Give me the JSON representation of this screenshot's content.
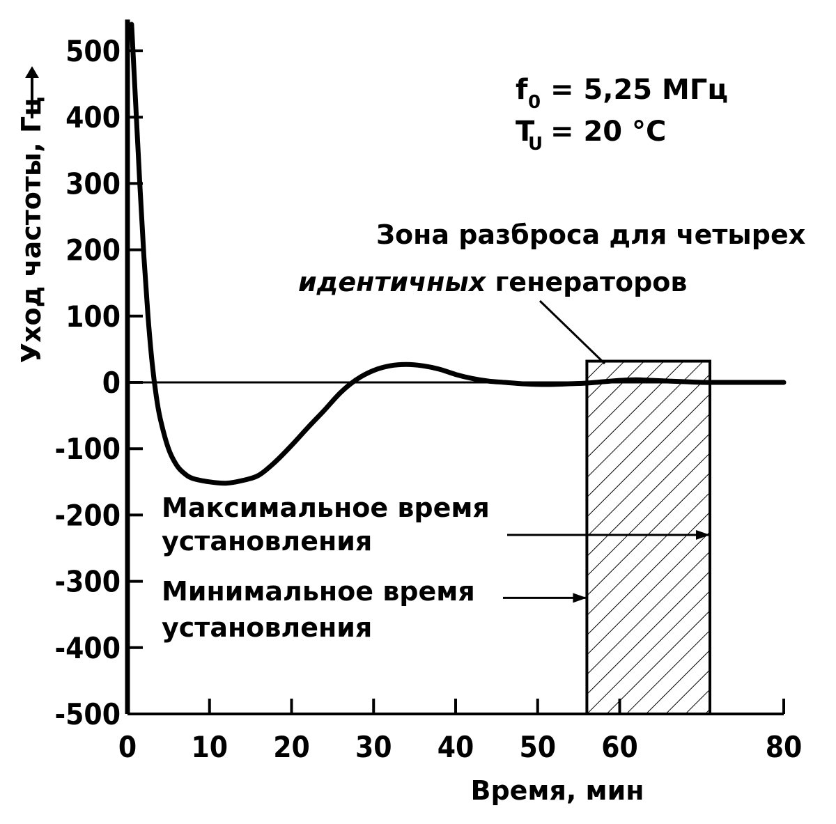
{
  "chart_data": {
    "type": "line",
    "title": "",
    "xlabel": "Время, мин",
    "ylabel": "Уход частоты, Гц",
    "xlim": [
      0,
      80
    ],
    "ylim": [
      -500,
      500
    ],
    "x_ticks": [
      0,
      10,
      20,
      30,
      40,
      50,
      60,
      80
    ],
    "y_ticks": [
      500,
      400,
      300,
      200,
      100,
      0,
      -100,
      -200,
      -300,
      -400,
      -500
    ],
    "x_tick_labels": [
      "0",
      "10",
      "20",
      "30",
      "40",
      "50",
      "60",
      "80"
    ],
    "y_tick_labels": [
      "500",
      "400",
      "300",
      "200",
      "100",
      "0",
      "-100",
      "-200",
      "-300",
      "-400",
      "-500"
    ],
    "reference_line": {
      "y": 0,
      "x_range": [
        0,
        80
      ]
    },
    "series": [
      {
        "name": "Уход частоты",
        "x": [
          0.5,
          1,
          1.5,
          2,
          2.5,
          3,
          3.5,
          4,
          5,
          6,
          7,
          8,
          10,
          12,
          14,
          16,
          18,
          20,
          22,
          24,
          26,
          28,
          30,
          32,
          34,
          36,
          38,
          40,
          42,
          44,
          46,
          48,
          50,
          52,
          54,
          56,
          58,
          60,
          62,
          64,
          66,
          68,
          70,
          72,
          74,
          76,
          78,
          80
        ],
        "y": [
          540,
          420,
          300,
          190,
          100,
          30,
          -20,
          -55,
          -100,
          -125,
          -138,
          -145,
          -150,
          -152,
          -148,
          -140,
          -120,
          -95,
          -68,
          -42,
          -15,
          5,
          18,
          25,
          27,
          25,
          20,
          12,
          6,
          2,
          0,
          -2,
          -3,
          -3,
          -2,
          -1,
          1,
          3,
          4,
          3,
          2,
          1,
          0,
          0,
          0,
          0,
          0,
          0
        ]
      }
    ],
    "annotations": {
      "params": {
        "f0_symbol": "f",
        "f0_sub": "0",
        "f0_value": "= 5,25 МГц",
        "tu_symbol": "T",
        "tu_sub": "U",
        "tu_value": "= 20 °C"
      },
      "zone_line1": "Зона разброса для четырех",
      "zone_line2_bold": "идентичных",
      "zone_line2_rest": " генераторов",
      "max_time_line1": "Максимальное время",
      "max_time_line2": "установления",
      "min_time_line1": "Минимальное время",
      "min_time_line2": "установления",
      "zone_x_range": [
        56,
        71
      ],
      "zone_y_range": [
        -500,
        32
      ],
      "max_time_level": -230,
      "min_time_level": -325
    }
  }
}
